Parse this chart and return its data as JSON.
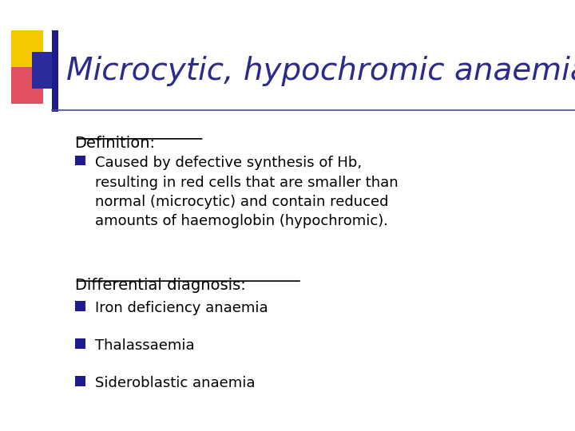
{
  "title": "Microcytic, hypochromic anaemia",
  "title_color": "#2B2B8B",
  "title_fontsize": 28,
  "background_color": "#FFFFFF",
  "text_color": "#000000",
  "definition_heading": "Definition:",
  "definition_bullet": "Caused by defective synthesis of Hb,\nresulting in red cells that are smaller than\nnormal (microcytic) and contain reduced\namounts of haemoglobin (hypochromic).",
  "diff_heading": "Differential diagnosis:",
  "diff_bullets": [
    "Iron deficiency anaemia",
    "Thalassaemia",
    "Sideroblastic anaemia"
  ],
  "bullet_color": "#1C1C8C",
  "heading_color": "#000000",
  "deco_yellow": "#F5C800",
  "deco_red": "#E05060",
  "deco_blue": "#2B2B9B",
  "bar_color": "#1C1C8C",
  "line_color": "#4A4A9A",
  "font_family": "Comic Sans MS"
}
